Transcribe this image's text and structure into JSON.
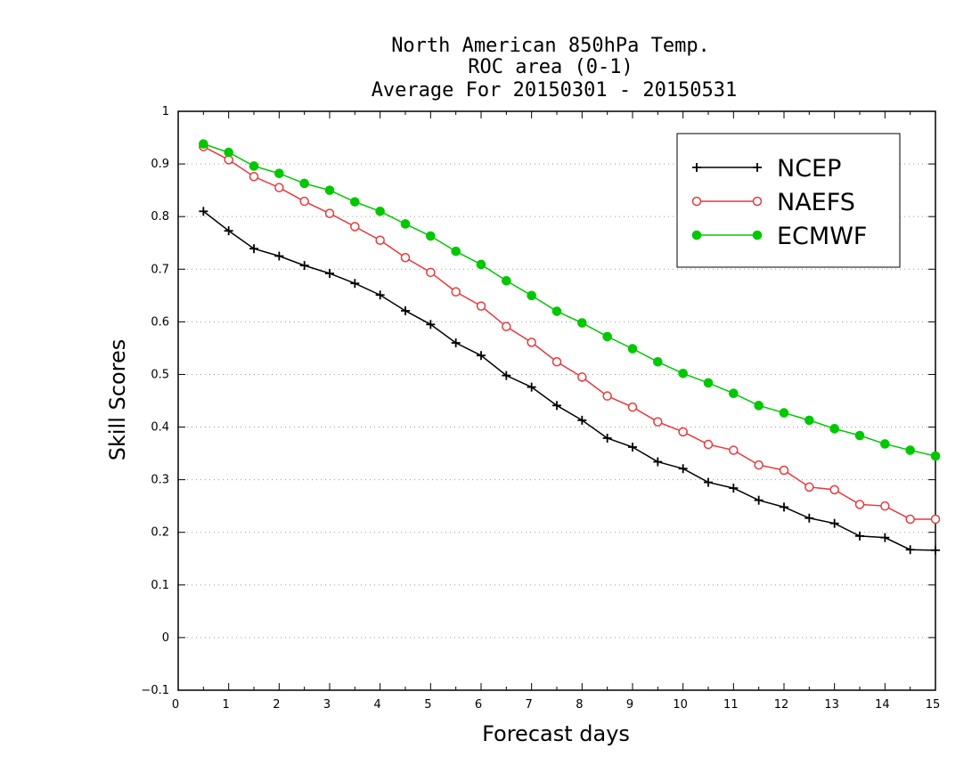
{
  "chart_data": {
    "type": "line",
    "title_lines": [
      "North American 850hPa Temp.",
      "ROC area (0-1)",
      "Average For 20150301 - 20150531"
    ],
    "xlabel": "Forecast days",
    "ylabel": "Skill Scores",
    "xlim": [
      0,
      15
    ],
    "ylim": [
      -0.1,
      1
    ],
    "x_ticks": [
      "0",
      "1",
      "2",
      "3",
      "4",
      "5",
      "6",
      "7",
      "8",
      "9",
      "10",
      "11",
      "12",
      "13",
      "14",
      "15"
    ],
    "y_ticks": [
      "−0.1",
      "0",
      "0.1",
      "0.2",
      "0.3",
      "0.4",
      "0.5",
      "0.6",
      "0.7",
      "0.8",
      "0.9",
      "1"
    ],
    "grid": "horizontal dotted",
    "legend_position": "top-right",
    "x": [
      0.5,
      1,
      1.5,
      2,
      2.5,
      3,
      3.5,
      4,
      4.5,
      5,
      5.5,
      6,
      6.5,
      7,
      7.5,
      8,
      8.5,
      9,
      9.5,
      10,
      10.5,
      11,
      11.5,
      12,
      12.5,
      13,
      13.5,
      14,
      14.5,
      15
    ],
    "series": [
      {
        "name": "NCEP",
        "color": "#000000",
        "marker": "plus",
        "values": [
          0.81,
          0.773,
          0.739,
          0.725,
          0.707,
          0.692,
          0.673,
          0.651,
          0.621,
          0.595,
          0.56,
          0.536,
          0.498,
          0.476,
          0.441,
          0.413,
          0.379,
          0.362,
          0.334,
          0.321,
          0.295,
          0.284,
          0.261,
          0.248,
          0.227,
          0.217,
          0.193,
          0.19,
          0.167,
          0.166
        ]
      },
      {
        "name": "NAEFS",
        "color": "#e8383d",
        "marker": "open-circle",
        "values": [
          0.933,
          0.908,
          0.876,
          0.855,
          0.829,
          0.806,
          0.781,
          0.755,
          0.722,
          0.694,
          0.657,
          0.63,
          0.591,
          0.561,
          0.524,
          0.495,
          0.459,
          0.438,
          0.41,
          0.391,
          0.367,
          0.356,
          0.328,
          0.318,
          0.286,
          0.281,
          0.253,
          0.25,
          0.225,
          0.225
        ]
      },
      {
        "name": "ECMWF",
        "color": "#00c800",
        "marker": "filled-circle",
        "values": [
          0.938,
          0.922,
          0.896,
          0.882,
          0.863,
          0.85,
          0.828,
          0.81,
          0.786,
          0.763,
          0.734,
          0.709,
          0.678,
          0.65,
          0.62,
          0.598,
          0.572,
          0.549,
          0.524,
          0.502,
          0.484,
          0.464,
          0.441,
          0.427,
          0.413,
          0.397,
          0.384,
          0.368,
          0.356,
          0.345
        ]
      }
    ]
  }
}
